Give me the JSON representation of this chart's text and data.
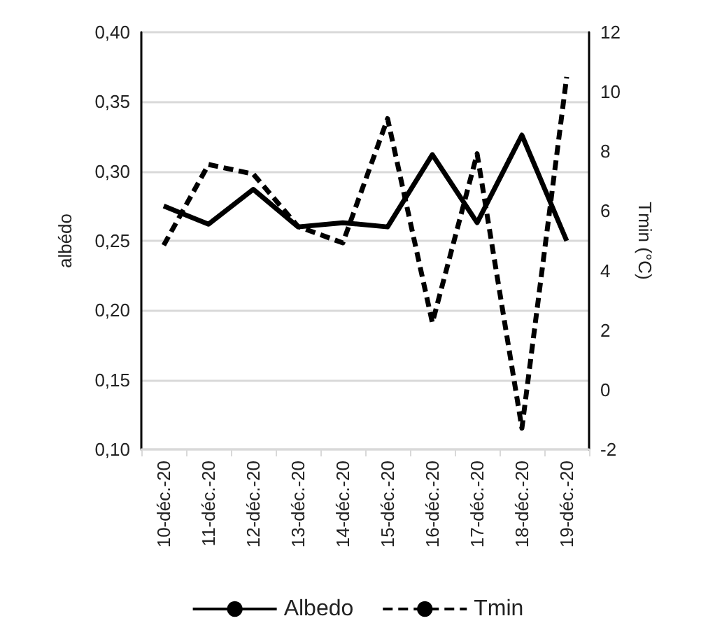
{
  "chart_data": {
    "type": "line",
    "ylabel": "albédo",
    "y2label": "Tmin (°C)",
    "categories": [
      "10-déc.-20",
      "11-déc.-20",
      "12-déc.-20",
      "13-déc.-20",
      "14-déc.-20",
      "15-déc.-20",
      "16-déc.-20",
      "17-déc.-20",
      "18-déc.-20",
      "19-déc.-20"
    ],
    "series": [
      {
        "name": "Albedo",
        "color": "#000000",
        "line_style": "solid",
        "values": [
          0.275,
          0.262,
          0.287,
          0.26,
          0.263,
          0.26,
          0.312,
          0.263,
          0.326,
          0.25
        ]
      },
      {
        "name": "Tmin",
        "color": "#000000",
        "line_style": "dashed",
        "axis": "y2",
        "values": [
          4.85,
          7.56,
          7.24,
          5.48,
          4.93,
          9.1,
          2.25,
          7.92,
          -1.29,
          10.5
        ]
      }
    ],
    "ylim": [
      0.1,
      0.4
    ],
    "yticks": [
      {
        "value": 0.1,
        "label": "0,10"
      },
      {
        "value": 0.15,
        "label": "0,15"
      },
      {
        "value": 0.2,
        "label": "0,20"
      },
      {
        "value": 0.25,
        "label": "0,25"
      },
      {
        "value": 0.3,
        "label": "0,30"
      },
      {
        "value": 0.35,
        "label": "0,35"
      },
      {
        "value": 0.4,
        "label": "0,40"
      }
    ],
    "y2lim": [
      -2,
      12
    ],
    "y2ticks": [
      -2,
      0,
      2,
      4,
      6,
      8,
      10,
      12
    ],
    "grid": "y",
    "legend": "bottom",
    "marker": "none"
  }
}
